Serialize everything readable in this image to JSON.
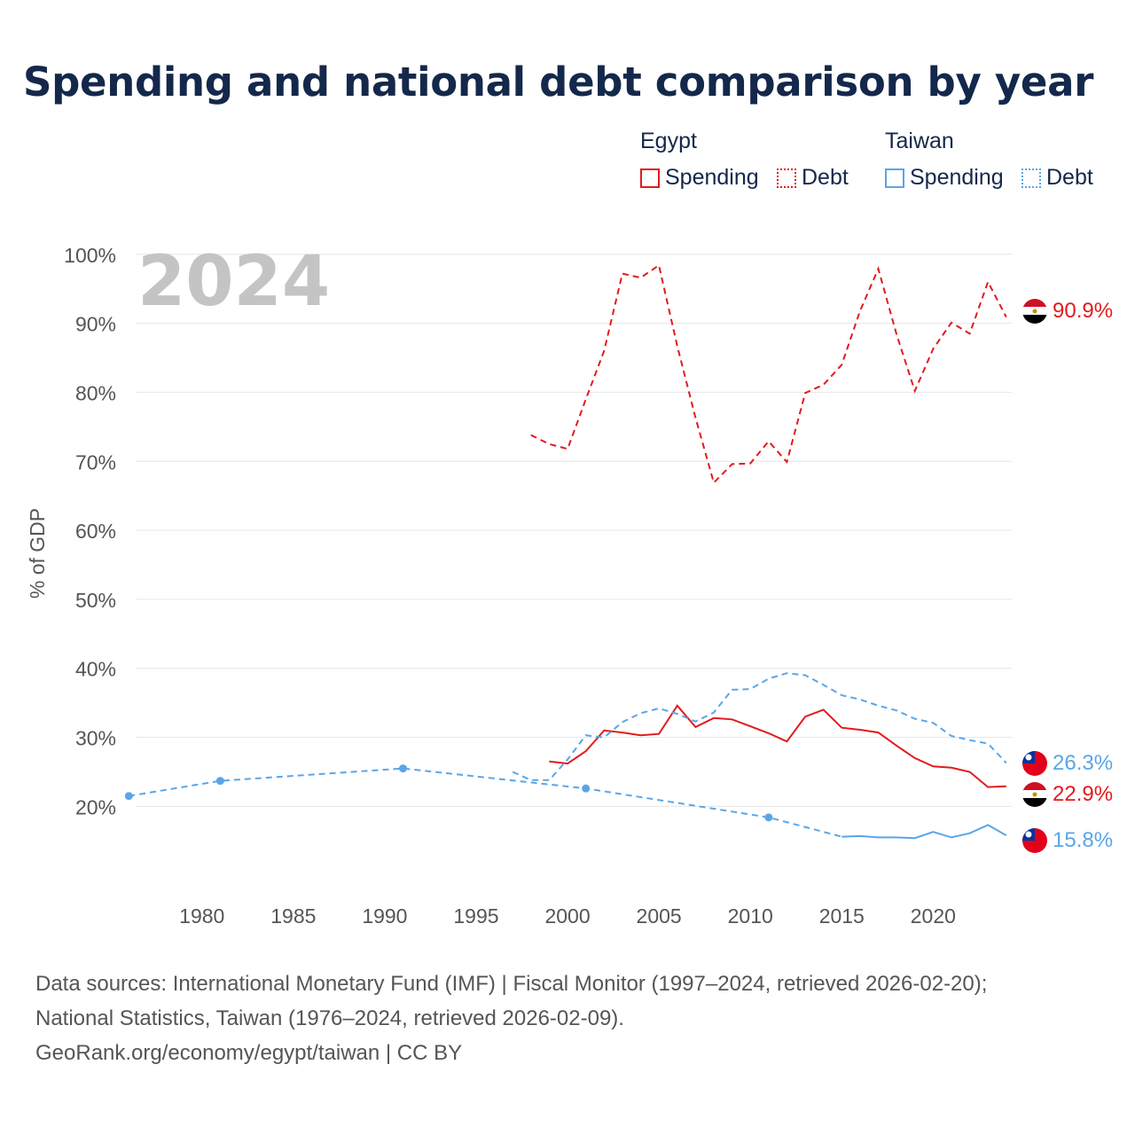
{
  "title": "Spending and national debt comparison by year",
  "legend": {
    "groups": [
      {
        "country": "Egypt",
        "color": "#e31a1c",
        "items": [
          {
            "label": "Spending",
            "style": "solid"
          },
          {
            "label": "Debt",
            "style": "dotted"
          }
        ]
      },
      {
        "country": "Taiwan",
        "color": "#5aa5e8",
        "items": [
          {
            "label": "Spending",
            "style": "solid"
          },
          {
            "label": "Debt",
            "style": "dotted"
          }
        ]
      }
    ]
  },
  "sources": {
    "line1": "Data sources: International Monetary Fund (IMF) | Fiscal Monitor (1997–2024, retrieved 2026-02-20);",
    "line2": "National Statistics, Taiwan (1976–2024, retrieved 2026-02-09).",
    "line3": "GeoRank.org/economy/egypt/taiwan | CC BY"
  },
  "chart_data": {
    "type": "line",
    "title": "Spending and national debt comparison by year",
    "year_watermark": "2024",
    "xlabel": "",
    "ylabel": "% of GDP",
    "xlim": [
      1975.5,
      2024.3
    ],
    "ylim": [
      9,
      101
    ],
    "x_ticks": [
      1980,
      1985,
      1990,
      1995,
      2000,
      2005,
      2010,
      2015,
      2020
    ],
    "y_ticks": [
      20,
      30,
      40,
      50,
      60,
      70,
      80,
      90,
      100
    ],
    "y_tick_labels": [
      "20%",
      "30%",
      "40%",
      "50%",
      "60%",
      "70%",
      "80%",
      "90%",
      "100%"
    ],
    "grid": true,
    "series": [
      {
        "name": "Egypt Debt",
        "country": "Egypt",
        "metric": "Debt",
        "color": "#e31a1c",
        "style": "dashed",
        "x": [
          1998,
          1999,
          2000,
          2001,
          2002,
          2003,
          2004,
          2005,
          2006,
          2007,
          2008,
          2009,
          2010,
          2011,
          2012,
          2013,
          2014,
          2015,
          2016,
          2017,
          2018,
          2019,
          2020,
          2021,
          2022,
          2023,
          2024
        ],
        "values": [
          73.8,
          72.5,
          71.8,
          79.0,
          86.0,
          97.2,
          96.6,
          98.4,
          86.7,
          76.3,
          66.9,
          69.6,
          69.7,
          72.9,
          69.9,
          79.9,
          81.1,
          84.0,
          91.8,
          97.9,
          88.4,
          80.2,
          86.3,
          90.1,
          88.5,
          96.0,
          90.9
        ],
        "end_label": "90.9%"
      },
      {
        "name": "Egypt Spending",
        "country": "Egypt",
        "metric": "Spending",
        "color": "#e31a1c",
        "style": "solid",
        "x": [
          1999,
          2000,
          2001,
          2002,
          2003,
          2004,
          2005,
          2006,
          2007,
          2008,
          2009,
          2010,
          2011,
          2012,
          2013,
          2014,
          2015,
          2016,
          2017,
          2018,
          2019,
          2020,
          2021,
          2022,
          2023,
          2024
        ],
        "values": [
          26.5,
          26.2,
          28.0,
          31.0,
          30.7,
          30.3,
          30.5,
          34.6,
          31.5,
          32.8,
          32.6,
          31.6,
          30.6,
          29.4,
          33.0,
          34.0,
          31.4,
          31.1,
          30.7,
          28.8,
          27.0,
          25.8,
          25.6,
          25.0,
          22.8,
          22.9
        ],
        "end_label": "22.9%"
      },
      {
        "name": "Taiwan Debt",
        "country": "Taiwan",
        "metric": "Debt",
        "color": "#5aa5e8",
        "style": "dashed",
        "x": [
          1997,
          1998,
          1999,
          2000,
          2001,
          2002,
          2003,
          2004,
          2005,
          2006,
          2007,
          2008,
          2009,
          2010,
          2011,
          2012,
          2013,
          2014,
          2015,
          2016,
          2017,
          2018,
          2019,
          2020,
          2021,
          2022,
          2023,
          2024
        ],
        "values": [
          25.0,
          23.8,
          23.8,
          26.8,
          30.3,
          30.0,
          32.2,
          33.5,
          34.2,
          33.4,
          32.3,
          33.6,
          36.9,
          37.0,
          38.5,
          39.3,
          39.0,
          37.6,
          36.1,
          35.5,
          34.6,
          33.9,
          32.7,
          32.1,
          30.2,
          29.6,
          29.1,
          26.3
        ],
        "end_label": "26.3%"
      },
      {
        "name": "Taiwan Spending",
        "country": "Taiwan",
        "metric": "Spending",
        "color": "#5aa5e8",
        "style": "dashed-then-solid",
        "x": [
          1976,
          1981,
          1991,
          2001,
          2011,
          2015,
          2016,
          2017,
          2018,
          2019,
          2020,
          2021,
          2022,
          2023,
          2024
        ],
        "values": [
          21.5,
          23.7,
          25.5,
          22.6,
          18.4,
          15.6,
          15.7,
          15.5,
          15.5,
          15.4,
          16.3,
          15.5,
          16.1,
          17.3,
          15.8
        ],
        "dense_from": 2015,
        "end_label": "15.8%"
      }
    ]
  }
}
